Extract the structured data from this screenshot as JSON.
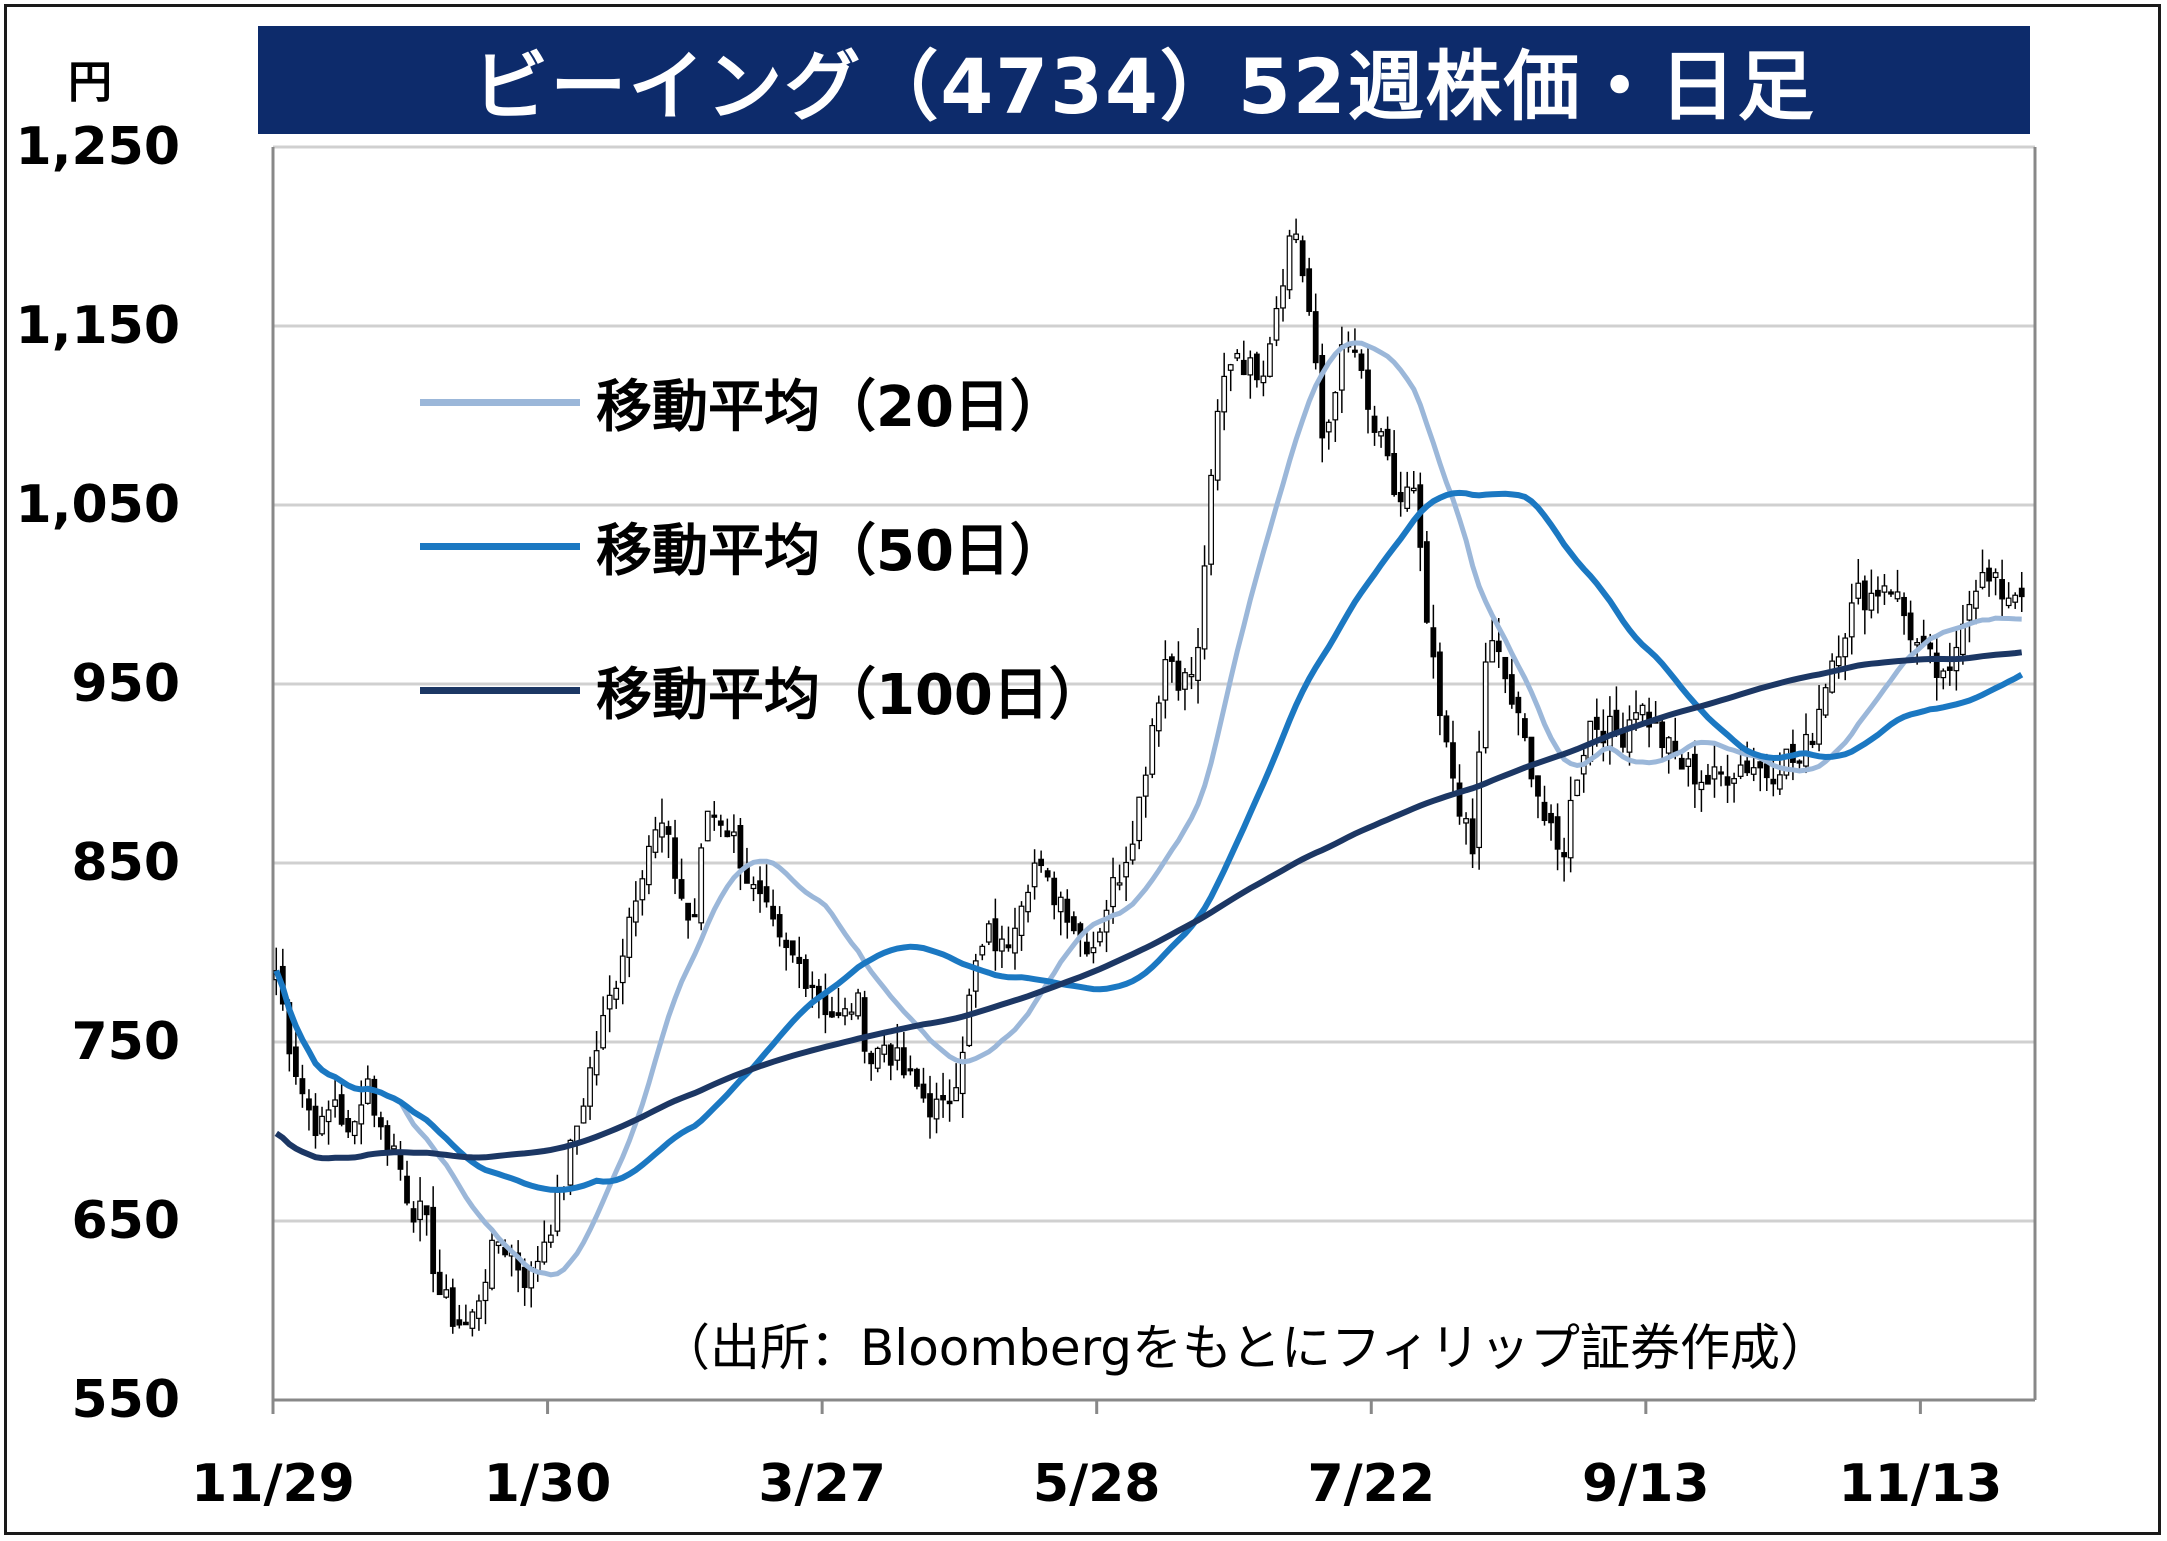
{
  "title": "ビーイング（4734）52週株価・日足",
  "y_unit": "円",
  "source_note": "（出所：Bloombergをもとにフィリップ証券作成）",
  "colors": {
    "title_bg": "#0d2b6b",
    "ma20": "#9bb7d9",
    "ma50": "#1b78c2",
    "ma100": "#1c3764",
    "grid": "#d0d0d0",
    "candle_body": "#000000"
  },
  "chart_data": {
    "type": "candlestick",
    "title": "ビーイング（4734）52週株価・日足",
    "ylabel": "円",
    "ylim": [
      550,
      1250
    ],
    "yticks": [
      "1,250",
      "1,150",
      "1,050",
      "950",
      "850",
      "750",
      "650",
      "550"
    ],
    "ytick_values": [
      1250,
      1150,
      1050,
      950,
      850,
      750,
      650,
      550
    ],
    "xticks": [
      "11/29",
      "1/30",
      "3/27",
      "5/28",
      "7/22",
      "9/13",
      "11/13"
    ],
    "xtick_index": [
      0,
      42,
      84,
      126,
      168,
      210,
      252
    ],
    "n_days": 268,
    "grid": true,
    "legend_position": "upper-left",
    "close_anchors": [
      [
        0,
        790
      ],
      [
        4,
        745
      ],
      [
        8,
        715
      ],
      [
        12,
        700
      ],
      [
        16,
        720
      ],
      [
        20,
        690
      ],
      [
        24,
        735
      ],
      [
        28,
        700
      ],
      [
        32,
        690
      ],
      [
        36,
        660
      ],
      [
        40,
        650
      ],
      [
        44,
        610
      ],
      [
        48,
        595
      ],
      [
        52,
        590
      ],
      [
        56,
        620
      ],
      [
        60,
        640
      ],
      [
        64,
        630
      ],
      [
        68,
        615
      ],
      [
        72,
        640
      ],
      [
        76,
        660
      ],
      [
        80,
        695
      ],
      [
        84,
        730
      ],
      [
        88,
        760
      ],
      [
        92,
        790
      ],
      [
        96,
        830
      ],
      [
        100,
        860
      ],
      [
        104,
        870
      ],
      [
        108,
        840
      ],
      [
        112,
        810
      ],
      [
        116,
        880
      ],
      [
        120,
        875
      ],
      [
        124,
        860
      ],
      [
        128,
        835
      ],
      [
        132,
        820
      ],
      [
        136,
        800
      ],
      [
        140,
        795
      ],
      [
        144,
        785
      ],
      [
        148,
        770
      ],
      [
        152,
        760
      ],
      [
        156,
        775
      ],
      [
        160,
        740
      ],
      [
        164,
        750
      ],
      [
        168,
        735
      ],
      [
        172,
        725
      ],
      [
        176,
        715
      ],
      [
        180,
        710
      ],
      [
        184,
        740
      ],
      [
        188,
        790
      ],
      [
        192,
        810
      ],
      [
        196,
        800
      ],
      [
        200,
        830
      ],
      [
        204,
        850
      ],
      [
        208,
        835
      ],
      [
        212,
        830
      ],
      [
        216,
        810
      ],
      [
        220,
        805
      ],
      [
        224,
        830
      ],
      [
        228,
        850
      ],
      [
        232,
        880
      ],
      [
        236,
        930
      ],
      [
        240,
        970
      ],
      [
        244,
        950
      ],
      [
        248,
        960
      ],
      [
        250,
        1020
      ],
      [
        254,
        1110
      ],
      [
        258,
        1140
      ],
      [
        262,
        1125
      ],
      [
        266,
        1130
      ],
      [
        270,
        1170
      ],
      [
        274,
        1210
      ],
      [
        278,
        1160
      ],
      [
        282,
        1080
      ],
      [
        286,
        1130
      ],
      [
        290,
        1140
      ],
      [
        294,
        1100
      ],
      [
        298,
        1080
      ],
      [
        302,
        1050
      ],
      [
        306,
        1060
      ],
      [
        310,
        980
      ],
      [
        314,
        920
      ],
      [
        318,
        890
      ],
      [
        322,
        850
      ],
      [
        326,
        975
      ],
      [
        330,
        960
      ],
      [
        334,
        930
      ],
      [
        338,
        905
      ],
      [
        342,
        870
      ],
      [
        346,
        850
      ],
      [
        350,
        900
      ],
      [
        354,
        930
      ],
      [
        358,
        925
      ],
      [
        362,
        920
      ],
      [
        366,
        940
      ],
      [
        370,
        930
      ],
      [
        374,
        915
      ],
      [
        378,
        905
      ],
      [
        382,
        900
      ],
      [
        386,
        895
      ],
      [
        390,
        900
      ],
      [
        394,
        905
      ],
      [
        398,
        905
      ],
      [
        402,
        900
      ],
      [
        406,
        910
      ],
      [
        410,
        905
      ],
      [
        414,
        925
      ],
      [
        418,
        960
      ],
      [
        422,
        980
      ],
      [
        426,
        1000
      ],
      [
        430,
        1000
      ],
      [
        434,
        1010
      ],
      [
        438,
        990
      ],
      [
        442,
        970
      ],
      [
        446,
        960
      ],
      [
        450,
        945
      ],
      [
        454,
        990
      ],
      [
        458,
        1010
      ],
      [
        462,
        1005
      ],
      [
        466,
        1000
      ],
      [
        470,
        1005
      ]
    ],
    "series": [
      {
        "name": "移動平均（20日）",
        "window": 20
      },
      {
        "name": "移動平均（50日）",
        "window": 50
      },
      {
        "name": "移動平均（100日）",
        "window": 100
      }
    ]
  }
}
